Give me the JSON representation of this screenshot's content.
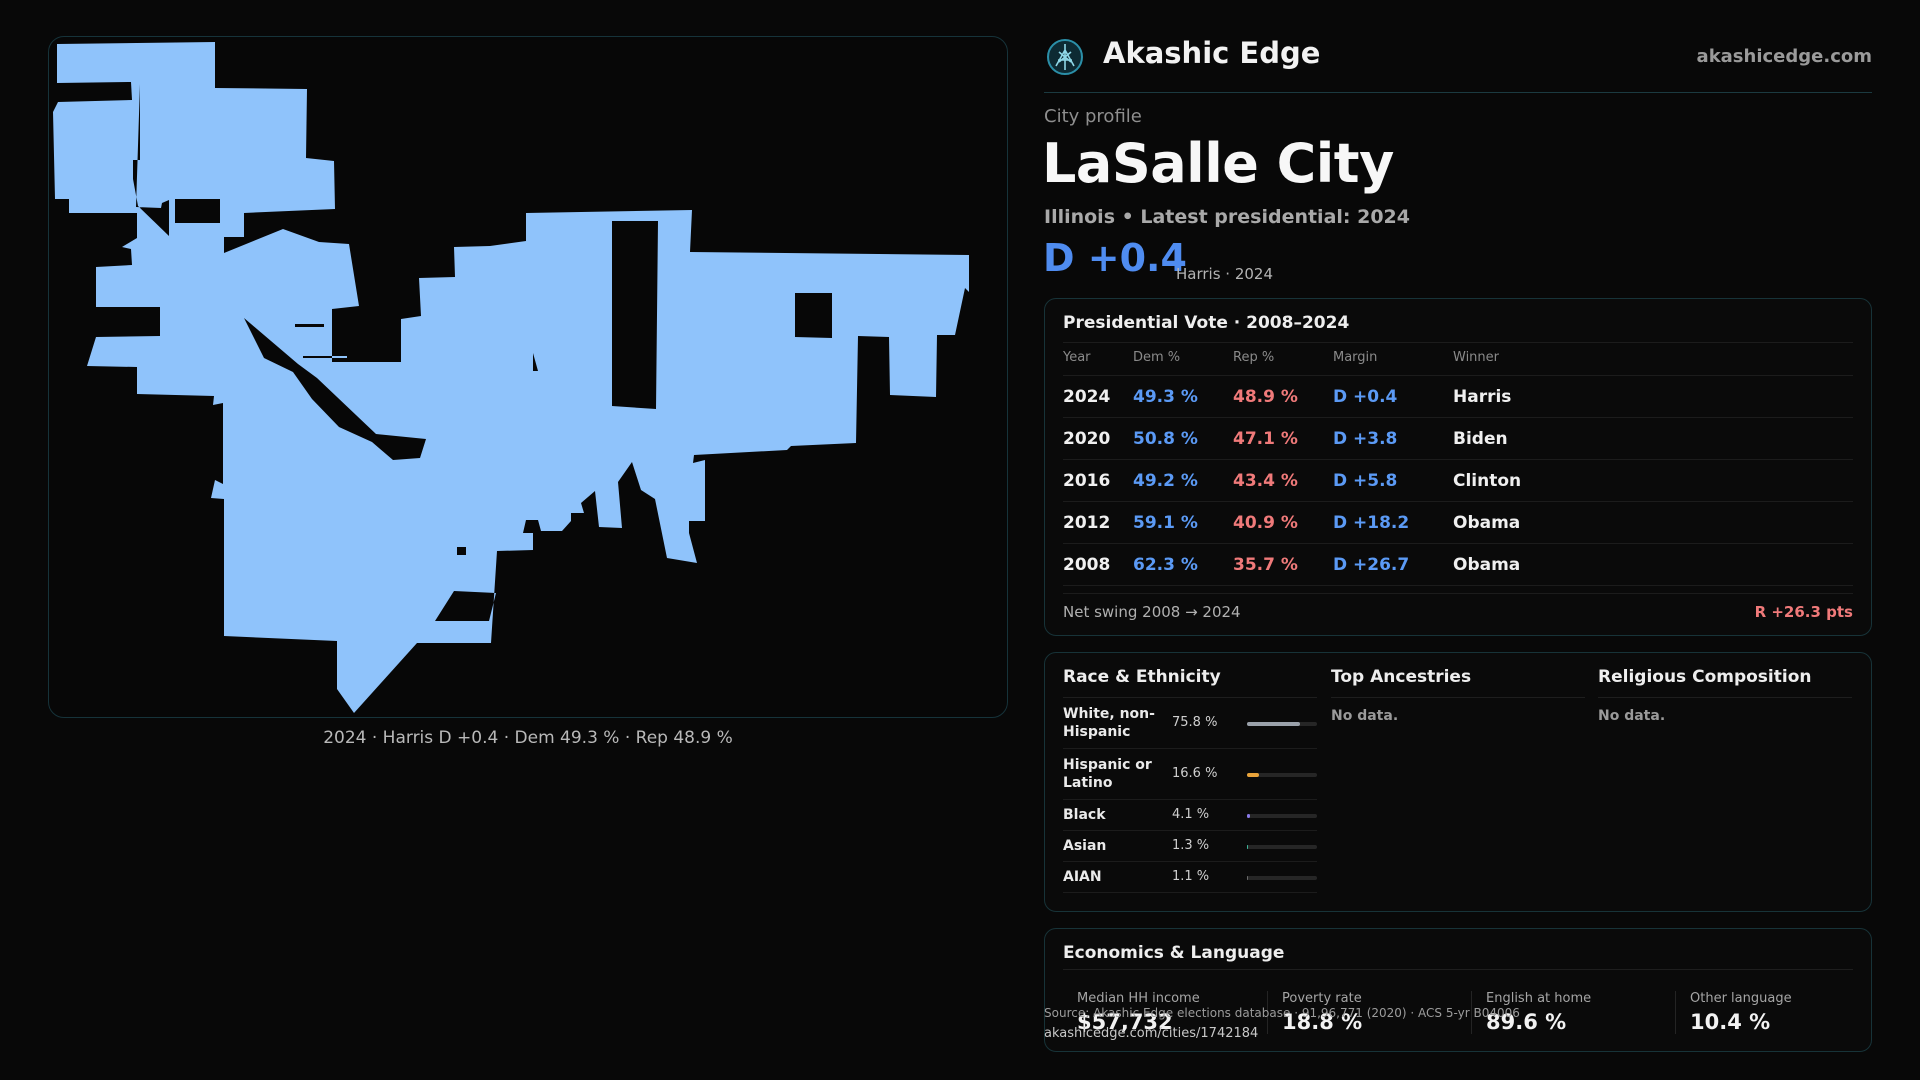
{
  "brand": {
    "name": "Akashic Edge",
    "url": "akashicedge.com",
    "logo_icon": "akashic-edge-logo-icon"
  },
  "profile": {
    "eyebrow": "City profile",
    "city": "LaSalle City",
    "subtitle": "Illinois • Latest presidential: 2024",
    "margin": "D +0.4",
    "margin_note": "Harris · 2024",
    "dem_color": "#4f8cf0",
    "rep_color": "#f07a7a"
  },
  "map": {
    "fill_color": "#8fc3fb",
    "caption": "2024 · Harris D +0.4 · Dem 49.3 % · Rep 48.9 %"
  },
  "votes": {
    "title": "Presidential Vote · 2008–2024",
    "headers": [
      "Year",
      "Dem %",
      "Rep %",
      "Margin",
      "Winner"
    ],
    "rows": [
      {
        "year": "2024",
        "dem": "49.3 %",
        "rep": "48.9 %",
        "margin": "D +0.4",
        "winner": "Harris"
      },
      {
        "year": "2020",
        "dem": "50.8 %",
        "rep": "47.1 %",
        "margin": "D +3.8",
        "winner": "Biden"
      },
      {
        "year": "2016",
        "dem": "49.2 %",
        "rep": "43.4 %",
        "margin": "D +5.8",
        "winner": "Clinton"
      },
      {
        "year": "2012",
        "dem": "59.1 %",
        "rep": "40.9 %",
        "margin": "D +18.2",
        "winner": "Obama"
      },
      {
        "year": "2008",
        "dem": "62.3 %",
        "rep": "35.7 %",
        "margin": "D +26.7",
        "winner": "Obama"
      }
    ],
    "swing_label": "Net swing 2008 → 2024",
    "swing_value": "R +26.3 pts"
  },
  "demographics": {
    "race_title": "Race & Ethnicity",
    "race": [
      {
        "name": "White, non-Hispanic",
        "pct": "75.8 %",
        "value": 75.8,
        "color": "#9aa1aa"
      },
      {
        "name": "Hispanic or Latino",
        "pct": "16.6 %",
        "value": 16.6,
        "color": "#e8a33a"
      },
      {
        "name": "Black",
        "pct": "4.1 %",
        "value": 4.1,
        "color": "#8a7ae8"
      },
      {
        "name": "Asian",
        "pct": "1.3 %",
        "value": 1.3,
        "color": "#3fb59a"
      },
      {
        "name": "AIAN",
        "pct": "1.1 %",
        "value": 1.1,
        "color": "#6a6a6a"
      }
    ],
    "ancestry_title": "Top Ancestries",
    "ancestry_nodata": "No data.",
    "religion_title": "Religious Composition",
    "religion_nodata": "No data."
  },
  "economics": {
    "title": "Economics & Language",
    "cells": [
      {
        "label": "Median HH income",
        "value": "$57,732"
      },
      {
        "label": "Poverty rate",
        "value": "18.8 %"
      },
      {
        "label": "English at home",
        "value": "89.6 %"
      },
      {
        "label": "Other language",
        "value": "10.4 %"
      }
    ]
  },
  "footer": {
    "source": "Source: Akashic Edge elections database · 91,96,771 (2020) · ACS 5-yr B04006",
    "link": "akashicedge.com/cities/1742184"
  }
}
